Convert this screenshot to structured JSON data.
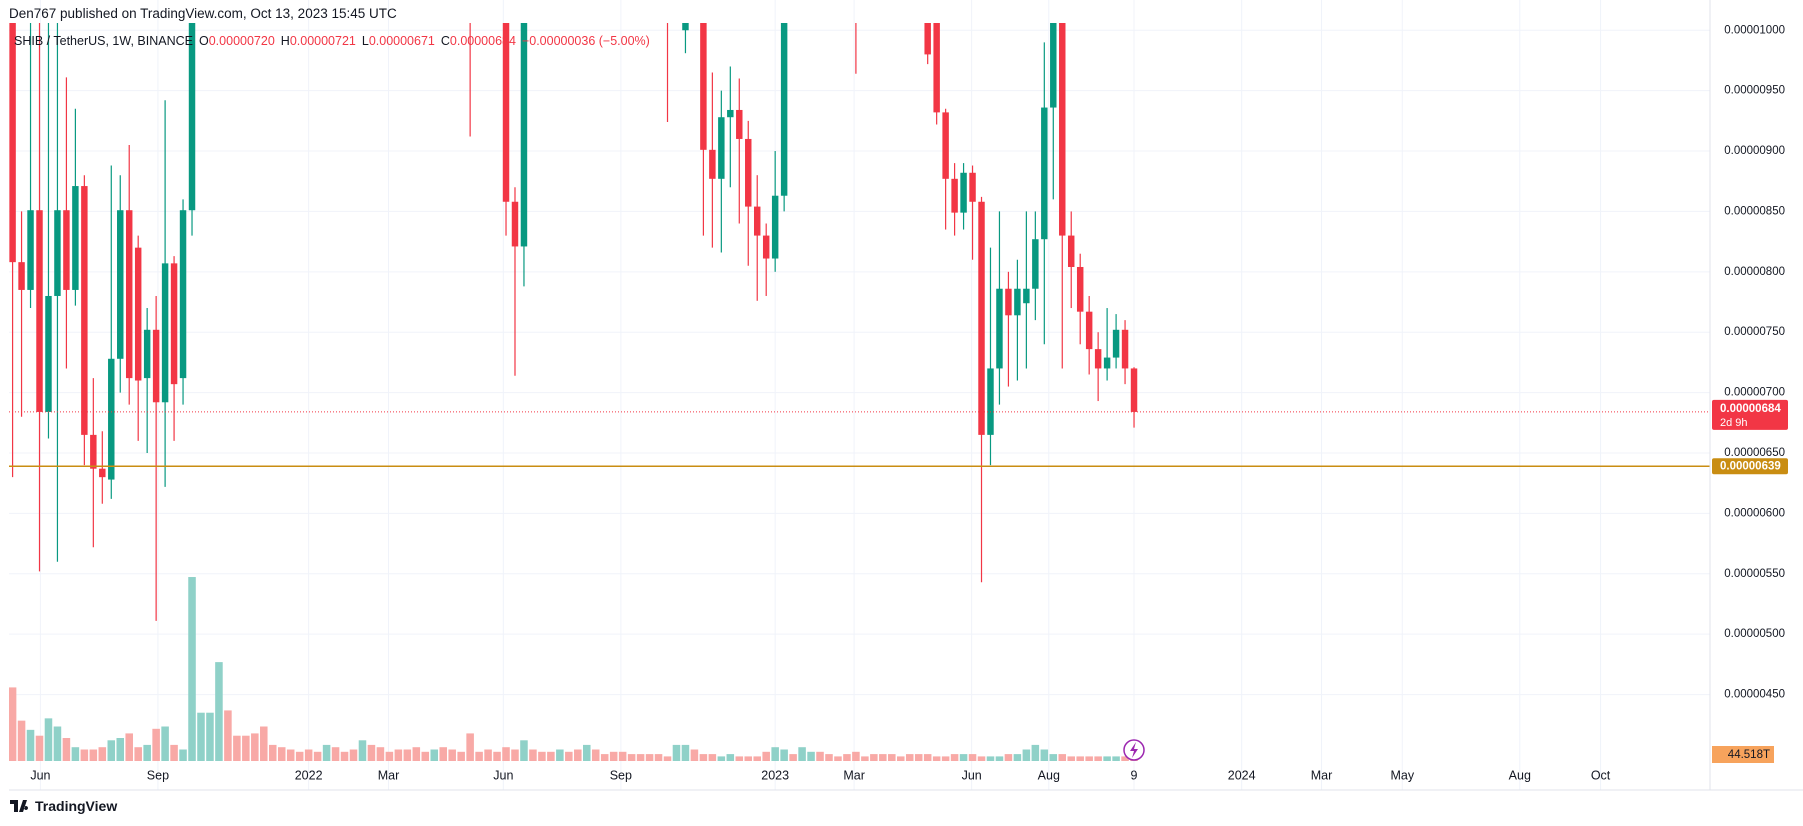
{
  "header": "Den767 published on TradingView.com, Oct 13, 2023 15:45 UTC",
  "legend": {
    "symbol": "SHIB / TetherUS, 1W, BINANCE",
    "ohlc": [
      {
        "label": "O",
        "value": "0.00000720"
      },
      {
        "label": "H",
        "value": "0.00000721"
      },
      {
        "label": "L",
        "value": "0.00000671"
      },
      {
        "label": "C",
        "value": "0.00000684"
      }
    ],
    "change": "−0.00000036 (−5.00%)"
  },
  "footer": "TradingView",
  "chart_data": {
    "type": "candlestick",
    "up_color": "#089981",
    "down_color": "#f23645",
    "xlim": [
      -0.4,
      189.2
    ],
    "ylim": [
      3.95e-06,
      1.006e-05
    ],
    "grid": true,
    "xticks": [
      {
        "value": 3.1,
        "label": "Jun"
      },
      {
        "value": 16.2,
        "label": "Sep"
      },
      {
        "value": 33,
        "label": "2022"
      },
      {
        "value": 41.9,
        "label": "Mar"
      },
      {
        "value": 54.7,
        "label": "Jun"
      },
      {
        "value": 67.8,
        "label": "Sep"
      },
      {
        "value": 85,
        "label": "2023"
      },
      {
        "value": 93.8,
        "label": "Mar"
      },
      {
        "value": 106.9,
        "label": "Jun"
      },
      {
        "value": 115.5,
        "label": "Aug"
      },
      {
        "value": 125,
        "label": "9"
      },
      {
        "value": 137,
        "label": "2024"
      },
      {
        "value": 145.9,
        "label": "Mar"
      },
      {
        "value": 154.9,
        "label": "May"
      },
      {
        "value": 168,
        "label": "Aug"
      },
      {
        "value": 177,
        "label": "Oct"
      }
    ],
    "yticks": [
      {
        "value": 4.5e-06,
        "label": "0.00000450"
      },
      {
        "value": 5e-06,
        "label": "0.00000500"
      },
      {
        "value": 5.5e-06,
        "label": "0.00000550"
      },
      {
        "value": 6e-06,
        "label": "0.00000600"
      },
      {
        "value": 6.5e-06,
        "label": "0.00000650"
      },
      {
        "value": 7e-06,
        "label": "0.00000700"
      },
      {
        "value": 7.5e-06,
        "label": "0.00000750"
      },
      {
        "value": 8e-06,
        "label": "0.00000800"
      },
      {
        "value": 8.5e-06,
        "label": "0.00000850"
      },
      {
        "value": 9e-06,
        "label": "0.00000900"
      },
      {
        "value": 9.5e-06,
        "label": "0.00000950"
      },
      {
        "value": 1e-05,
        "label": "0.00001000"
      }
    ],
    "x": [
      0,
      1,
      2,
      3,
      4,
      5,
      6,
      7,
      8,
      9,
      10,
      11,
      12,
      13,
      14,
      15,
      16,
      17,
      18,
      19,
      20,
      51,
      55,
      56,
      57,
      73,
      75,
      77,
      78,
      79,
      80,
      81,
      82,
      83,
      84,
      85,
      86,
      94,
      102,
      103,
      104,
      105,
      106,
      107,
      108,
      109,
      110,
      111,
      112,
      113,
      114,
      115,
      116,
      117,
      118,
      119,
      120,
      121,
      122,
      123,
      124,
      125
    ],
    "open": [
      1.03e-05,
      8.08e-06,
      7.85e-06,
      8.51e-06,
      6.84e-06,
      7.8e-06,
      8.51e-06,
      7.85e-06,
      8.71e-06,
      6.65e-06,
      6.37e-06,
      6.28e-06,
      7.28e-06,
      8.51e-06,
      8.2e-06,
      7.12e-06,
      7.52e-06,
      6.92e-06,
      8.07e-06,
      7.12e-06,
      8.51e-06,
      1.08e-05,
      1.04e-05,
      8.58e-06,
      8.21e-06,
      1.1e-05,
      1e-05,
      1.08e-05,
      9.01e-06,
      8.77e-06,
      9.28e-06,
      9.34e-06,
      9.1e-06,
      8.54e-06,
      8.3e-06,
      8.11e-06,
      8.63e-06,
      1.06e-05,
      1.05e-05,
      1.01e-05,
      9.32e-06,
      8.77e-06,
      8.49e-06,
      8.82e-06,
      8.58e-06,
      6.65e-06,
      7.2e-06,
      7.86e-06,
      7.64e-06,
      7.74e-06,
      7.86e-06,
      8.27e-06,
      9.36e-06,
      1.01e-05,
      8.3e-06,
      8.04e-06,
      7.67e-06,
      7.36e-06,
      7.2e-06,
      7.29e-06,
      7.52e-06,
      7.2e-06
    ],
    "high": [
      1.06e-05,
      8.5e-06,
      1.01e-05,
      1.01e-05,
      1.01e-05,
      1.01e-05,
      9.61e-06,
      9.35e-06,
      8.8e-06,
      7.12e-06,
      6.68e-06,
      8.88e-06,
      8.8e-06,
      9.05e-06,
      8.3e-06,
      7.7e-06,
      7.8e-06,
      9.42e-06,
      8.13e-06,
      8.6e-06,
      1.05e-05,
      1.1e-05,
      1.1e-05,
      8.7e-06,
      1.06e-05,
      1.12e-05,
      1.08e-05,
      1.1e-05,
      9.65e-06,
      9.5e-06,
      9.7e-06,
      9.6e-06,
      9.25e-06,
      8.8e-06,
      8.4e-06,
      9e-06,
      1.06e-05,
      1.08e-05,
      1.08e-05,
      1.04e-05,
      9.35e-06,
      8.9e-06,
      8.9e-06,
      8.88e-06,
      8.62e-06,
      8.2e-06,
      8.5e-06,
      8e-06,
      8.1e-06,
      8.5e-06,
      8.5e-06,
      9.9e-06,
      1.04e-05,
      1.04e-05,
      8.5e-06,
      8.15e-06,
      7.8e-06,
      7.5e-06,
      7.7e-06,
      7.65e-06,
      7.6e-06,
      7.21e-06
    ],
    "low": [
      6.3e-06,
      6.8e-06,
      7.7e-06,
      5.52e-06,
      6.62e-06,
      5.6e-06,
      7.2e-06,
      7.72e-06,
      6.4e-06,
      5.72e-06,
      6.08e-06,
      6.12e-06,
      7e-06,
      6.9e-06,
      6.6e-06,
      6.5e-06,
      5.11e-06,
      6.22e-06,
      6.6e-06,
      6.9e-06,
      8.3e-06,
      9.12e-06,
      8.3e-06,
      7.14e-06,
      7.88e-06,
      9.24e-06,
      9.81e-06,
      8.3e-06,
      8.2e-06,
      8.16e-06,
      8.7e-06,
      8.4e-06,
      8.05e-06,
      7.76e-06,
      7.8e-06,
      8e-06,
      8.5e-06,
      9.64e-06,
      9.72e-06,
      9.22e-06,
      8.35e-06,
      8.3e-06,
      8.35e-06,
      8.1e-06,
      5.43e-06,
      6.4e-06,
      6.9e-06,
      7.05e-06,
      7.1e-06,
      7.2e-06,
      7.6e-06,
      7.4e-06,
      8.6e-06,
      7.2e-06,
      7.7e-06,
      7.4e-06,
      7.15e-06,
      6.93e-06,
      7.1e-06,
      7.2e-06,
      7.07e-06,
      6.71e-06
    ],
    "close": [
      8.08e-06,
      7.85e-06,
      8.51e-06,
      6.84e-06,
      7.8e-06,
      8.51e-06,
      7.85e-06,
      8.71e-06,
      6.65e-06,
      6.37e-06,
      6.3e-06,
      7.28e-06,
      8.51e-06,
      7.12e-06,
      7.1e-06,
      7.52e-06,
      6.92e-06,
      8.07e-06,
      7.07e-06,
      8.51e-06,
      1.01e-05,
      1.04e-05,
      8.58e-06,
      8.21e-06,
      1.03e-05,
      1.06e-05,
      1.04e-05,
      9.01e-06,
      8.77e-06,
      9.28e-06,
      9.34e-06,
      9.1e-06,
      8.54e-06,
      8.3e-06,
      8.11e-06,
      8.63e-06,
      1.03e-05,
      1.04e-05,
      9.8e-06,
      9.32e-06,
      8.77e-06,
      8.49e-06,
      8.82e-06,
      8.58e-06,
      6.65e-06,
      7.2e-06,
      7.86e-06,
      7.64e-06,
      7.86e-06,
      7.86e-06,
      8.27e-06,
      9.36e-06,
      1.01e-05,
      8.3e-06,
      8.04e-06,
      7.67e-06,
      7.36e-06,
      7.2e-06,
      7.29e-06,
      7.52e-06,
      7.2e-06,
      6.84e-06
    ],
    "volume": {
      "ylim": [
        0,
        3530
      ],
      "label": "44.518T",
      "values": [
        352,
        193,
        149,
        121,
        204,
        165,
        110,
        66,
        55,
        55,
        66,
        99,
        110,
        132,
        66,
        77,
        154,
        165,
        77,
        55,
        880,
        231,
        231,
        473,
        242,
        121,
        121,
        132,
        165,
        77,
        66,
        55,
        44,
        55,
        44,
        77,
        66,
        44,
        55,
        99,
        77,
        66,
        44,
        55,
        55,
        66,
        44,
        55,
        66,
        55,
        44,
        132,
        44,
        55,
        44,
        66,
        55,
        99,
        55,
        44,
        44,
        55,
        44,
        55,
        77,
        55,
        33,
        44,
        44,
        33,
        33,
        33,
        33,
        22,
        77,
        77,
        55,
        33,
        33,
        22,
        33,
        22,
        22,
        22,
        44,
        66,
        55,
        33,
        66,
        44,
        44,
        33,
        22,
        33,
        44,
        22,
        33,
        33,
        33,
        22,
        33,
        33,
        33,
        22,
        22,
        33,
        33,
        33,
        22,
        22,
        22,
        33,
        33,
        55,
        77,
        55,
        33,
        33,
        22,
        22,
        22,
        22,
        22,
        22,
        22,
        44.518
      ],
      "colors": [
        "#f8a9a6",
        "#f8a9a6",
        "#8fd1c8",
        "#f8a9a6",
        "#8fd1c8",
        "#8fd1c8",
        "#f8a9a6",
        "#8fd1c8",
        "#f8a9a6",
        "#f8a9a6",
        "#f8a9a6",
        "#8fd1c8",
        "#8fd1c8",
        "#f8a9a6",
        "#f8a9a6",
        "#8fd1c8",
        "#f8a9a6",
        "#8fd1c8",
        "#f8a9a6",
        "#8fd1c8",
        "#8fd1c8",
        "#8fd1c8",
        "#8fd1c8",
        "#8fd1c8",
        "#f8a9a6",
        "#f8a9a6",
        "#f8a9a6",
        "#f8a9a6",
        "#f8a9a6",
        "#f8a9a6",
        "#f8a9a6",
        "#f8a9a6",
        "#f8a9a6",
        "#f8a9a6",
        "#f8a9a6",
        "#8fd1c8",
        "#f8a9a6",
        "#f8a9a6",
        "#f8a9a6",
        "#8fd1c8",
        "#f8a9a6",
        "#f8a9a6",
        "#f8a9a6",
        "#f8a9a6",
        "#f8a9a6",
        "#f8a9a6",
        "#f8a9a6",
        "#8fd1c8",
        "#f8a9a6",
        "#f8a9a6",
        "#f8a9a6",
        "#f8a9a6",
        "#f8a9a6",
        "#f8a9a6",
        "#f8a9a6",
        "#f8a9a6",
        "#f8a9a6",
        "#8fd1c8",
        "#f8a9a6",
        "#f8a9a6",
        "#f8a9a6",
        "#8fd1c8",
        "#f8a9a6",
        "#f8a9a6",
        "#8fd1c8",
        "#f8a9a6",
        "#f8a9a6",
        "#f8a9a6",
        "#f8a9a6",
        "#f8a9a6",
        "#f8a9a6",
        "#f8a9a6",
        "#f8a9a6",
        "#f8a9a6",
        "#8fd1c8",
        "#8fd1c8",
        "#f8a9a6",
        "#f8a9a6",
        "#f8a9a6",
        "#8fd1c8",
        "#8fd1c8",
        "#f8a9a6",
        "#f8a9a6",
        "#f8a9a6",
        "#f8a9a6",
        "#8fd1c8",
        "#8fd1c8",
        "#f8a9a6",
        "#8fd1c8",
        "#8fd1c8",
        "#f8a9a6",
        "#f8a9a6",
        "#f8a9a6",
        "#f8a9a6",
        "#f8a9a6",
        "#f8a9a6",
        "#f8a9a6",
        "#f8a9a6",
        "#f8a9a6",
        "#f8a9a6",
        "#f8a9a6",
        "#f8a9a6",
        "#f8a9a6",
        "#f8a9a6",
        "#f8a9a6",
        "#f8a9a6",
        "#8fd1c8",
        "#f8a9a6",
        "#f8a9a6",
        "#8fd1c8",
        "#8fd1c8",
        "#f8a9a6",
        "#8fd1c8",
        "#8fd1c8",
        "#8fd1c8",
        "#8fd1c8",
        "#8fd1c8",
        "#f8a9a6",
        "#f8a9a6",
        "#f8a9a6",
        "#f8a9a6",
        "#f8a9a6",
        "#8fd1c8",
        "#8fd1c8",
        "#f8a9a6",
        "#f8a9a6"
      ]
    },
    "price_line": {
      "value": 6.84e-06,
      "label": "0.00000684",
      "countdown": "2d 9h",
      "color": "#f23645"
    },
    "level_line": {
      "value": 6.39e-06,
      "label": "0.00000639",
      "color": "#c98d12"
    }
  }
}
